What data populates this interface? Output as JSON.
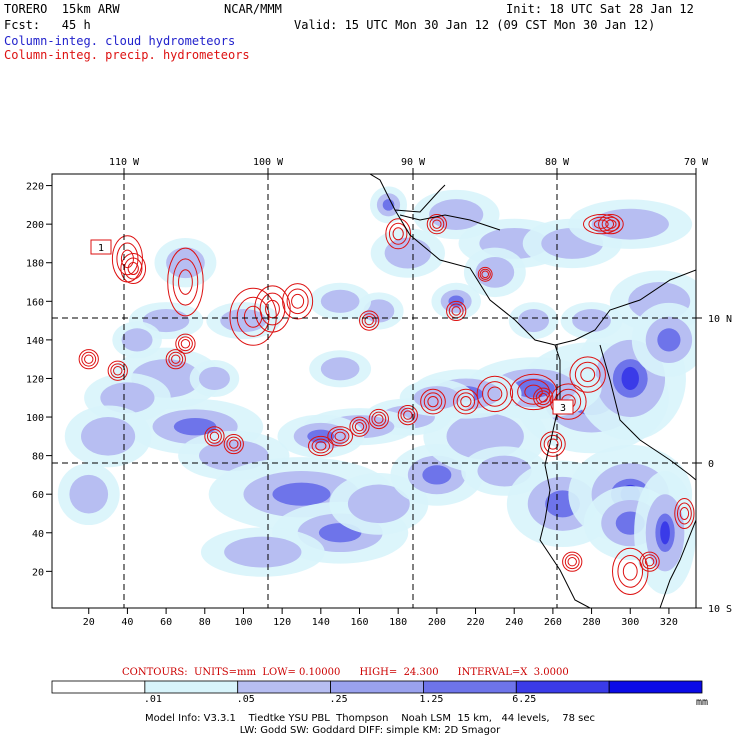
{
  "header": {
    "model": "TORERO  15km ARW",
    "org": "NCAR/MMM",
    "init": "Init: 18 UTC Sat 28 Jan 12",
    "fcst": "Fcst:   45 h",
    "valid": "Valid: 15 UTC Mon 30 Jan 12 (09 CST Mon 30 Jan 12)",
    "field1": "Column-integ. cloud hydrometeors",
    "field2": "Column-integ. precip. hydrometeors"
  },
  "colors": {
    "field1_text": "#2222cc",
    "field2_text": "#dd1111",
    "contour": "#dd1111",
    "coast": "#000000"
  },
  "chart_data": {
    "type": "heatmap",
    "x_axis": {
      "ticks": [
        20,
        40,
        60,
        80,
        100,
        120,
        140,
        160,
        180,
        200,
        220,
        240,
        260,
        280,
        300,
        320
      ],
      "range": [
        1,
        334
      ]
    },
    "y_axis": {
      "ticks": [
        20,
        40,
        60,
        80,
        100,
        120,
        140,
        160,
        180,
        200,
        220
      ],
      "range": [
        1,
        226
      ]
    },
    "lon_labels": [
      "110 W",
      "100 W",
      "90 W",
      "80 W",
      "70 W"
    ],
    "lat_labels": [
      "10 N",
      "0",
      "10 S"
    ],
    "markers": [
      "1",
      "3"
    ],
    "colorbar": {
      "levels": [
        ".01",
        ".05",
        ".25",
        "1.25",
        "6.25"
      ],
      "colors": [
        "#ffffff",
        "#d8f4fb",
        "#b7bef2",
        "#9aa2ee",
        "#6e74ea",
        "#3a3be8",
        "#0a0ae6"
      ],
      "unit": "mm"
    },
    "contours": {
      "label": "CONTOURS:  UNITS=mm  LOW= 0.10000      HIGH=  24.300      INTERVAL=X  3.0000",
      "units": "mm",
      "low": 0.1,
      "high": 24.3,
      "interval": 3.0
    }
  },
  "footer": {
    "line1": "Model Info: V3.3.1    Tiedtke YSU PBL  Thompson    Noah LSM  15 km,   44 levels,    78 sec",
    "line2": "LW: Godd SW: Goddard DIFF: simple KM: 2D Smagor"
  }
}
